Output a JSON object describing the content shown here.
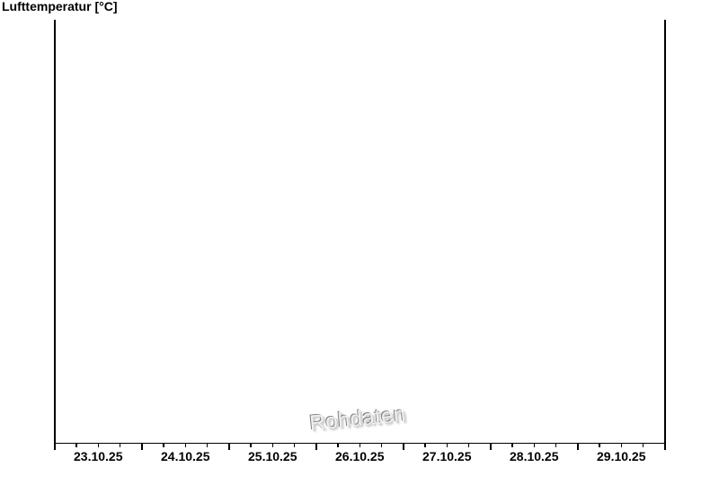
{
  "page": {
    "background": "#ffffff"
  },
  "chart_data": {
    "type": "line",
    "title": "Lufttemperatur [°C]",
    "xlabel": "",
    "ylabel": "",
    "x_tick_labels": [
      "23.10.25",
      "24.10.25",
      "25.10.25",
      "26.10.25",
      "27.10.25",
      "28.10.25",
      "29.10.25"
    ],
    "x_axis": {
      "range_days": 7,
      "major_ticks": "midnight day boundaries",
      "minor_ticks_per_day": 3,
      "minor_tick_interval_hours": 6,
      "labels_centered_at": "noon"
    },
    "y_axis": {
      "tick_labels": [],
      "labels_visible": false
    },
    "series": [],
    "grid": false,
    "legend": false,
    "frame": {
      "left": true,
      "right": true,
      "bottom": true,
      "top": false
    },
    "watermark": {
      "text": "Rohdaten",
      "rotation_deg": -5.5,
      "style": "embossed-gray"
    },
    "colors": {
      "axis": "#000000",
      "label_text": "#000000",
      "watermark_shadow": "#828282",
      "background": "#ffffff"
    }
  }
}
